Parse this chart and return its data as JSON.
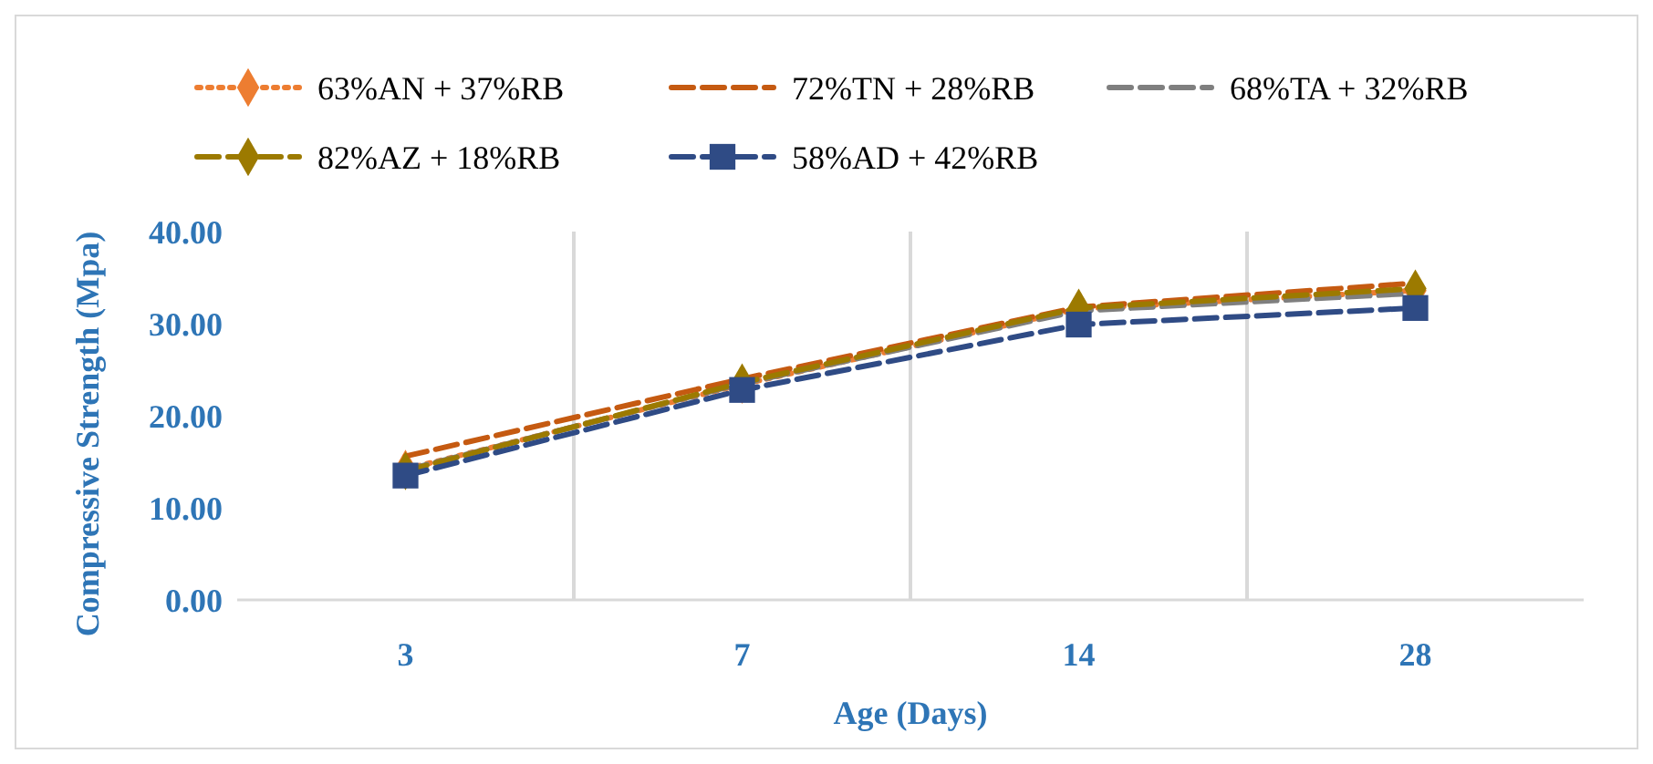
{
  "chart_data": {
    "type": "line",
    "xlabel": "Age (Days)",
    "ylabel": "Compressive Strength (Mpa)",
    "categories": [
      "3",
      "7",
      "14",
      "28"
    ],
    "ylim": [
      0,
      40
    ],
    "yticks": [
      {
        "value": 0,
        "label": "0.00"
      },
      {
        "value": 10,
        "label": "10.00"
      },
      {
        "value": 20,
        "label": "20.00"
      },
      {
        "value": 30,
        "label": "30.00"
      },
      {
        "value": 40,
        "label": "40.00"
      }
    ],
    "grid": "x",
    "legend": "top",
    "series": [
      {
        "name": "63%AN + 37%RB",
        "color": "#ed7d31",
        "marker": "diamond",
        "line_style": "dotted",
        "values": [
          14.2,
          23.4,
          31.6,
          33.6
        ]
      },
      {
        "name": "72%TN + 28%RB",
        "color": "#c55a11",
        "marker": "none",
        "line_style": "dashed",
        "values": [
          15.6,
          24.0,
          31.8,
          34.4
        ]
      },
      {
        "name": "68%TA + 32%RB",
        "color": "#7f7f7f",
        "marker": "none",
        "line_style": "dashed",
        "values": [
          14.1,
          23.5,
          31.4,
          33.3
        ]
      },
      {
        "name": "82%AZ + 18%RB",
        "color": "#9c7a00",
        "marker": "diamond",
        "line_style": "dashed",
        "values": [
          14.0,
          23.6,
          31.7,
          33.8
        ]
      },
      {
        "name": "58%AD + 42%RB",
        "color": "#2f4b85",
        "marker": "square",
        "line_style": "dashed",
        "values": [
          13.5,
          22.8,
          29.9,
          31.7
        ]
      }
    ]
  }
}
